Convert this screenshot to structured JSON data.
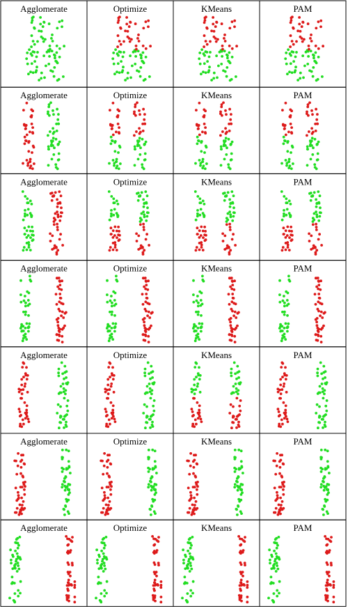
{
  "columns": [
    "Agglomerate",
    "Optimize",
    "KMeans",
    "PAM"
  ],
  "colors": {
    "cluster_red": "#dd1a1a",
    "cluster_green": "#22dd22",
    "border": "#000000"
  },
  "chart_data": {
    "type": "scatter",
    "layout": "grid",
    "rows": 7,
    "cols": 4,
    "column_titles": [
      "Agglomerate",
      "Optimize",
      "KMeans",
      "PAM"
    ],
    "series_colors": [
      "red",
      "green"
    ],
    "rows_data": [
      {
        "clouds": [
          {
            "xcenter": 0.5,
            "xspread": 0.28,
            "n": 80
          }
        ],
        "assignments": [
          {
            "method": "Agglomerate",
            "red_region": "none",
            "notes": "all points one cluster (green)"
          },
          {
            "method": "Optimize",
            "red_region": "top half"
          },
          {
            "method": "KMeans",
            "red_region": "top half"
          },
          {
            "method": "PAM",
            "red_region": "top half"
          }
        ]
      },
      {
        "clouds": [
          {
            "xcenter": 0.31,
            "xspread": 0.08,
            "n": 40
          },
          {
            "xcenter": 0.62,
            "xspread": 0.1,
            "n": 45
          }
        ],
        "assignments": [
          {
            "method": "Agglomerate",
            "red_region": "left cloud"
          },
          {
            "method": "Optimize",
            "red_region": "top half"
          },
          {
            "method": "KMeans",
            "red_region": "top half"
          },
          {
            "method": "PAM",
            "red_region": "top half"
          }
        ]
      },
      {
        "clouds": [
          {
            "xcenter": 0.3,
            "xspread": 0.08,
            "n": 40
          },
          {
            "xcenter": 0.66,
            "xspread": 0.09,
            "n": 45
          }
        ],
        "assignments": [
          {
            "method": "Agglomerate",
            "red_region": "right cloud"
          },
          {
            "method": "Optimize",
            "red_region": "bottom half"
          },
          {
            "method": "KMeans",
            "red_region": "bottom half"
          },
          {
            "method": "PAM",
            "red_region": "bottom half"
          }
        ]
      },
      {
        "clouds": [
          {
            "xcenter": 0.27,
            "xspread": 0.08,
            "n": 40
          },
          {
            "xcenter": 0.72,
            "xspread": 0.08,
            "n": 45
          }
        ],
        "assignments": [
          {
            "method": "Agglomerate",
            "red_region": "right cloud"
          },
          {
            "method": "Optimize",
            "red_region": "right cloud"
          },
          {
            "method": "KMeans",
            "red_region": "right cloud"
          },
          {
            "method": "PAM",
            "red_region": "right cloud"
          }
        ]
      },
      {
        "clouds": [
          {
            "xcenter": 0.24,
            "xspread": 0.08,
            "n": 40
          },
          {
            "xcenter": 0.75,
            "xspread": 0.09,
            "n": 45
          }
        ],
        "assignments": [
          {
            "method": "Agglomerate",
            "red_region": "left cloud"
          },
          {
            "method": "Optimize",
            "red_region": "left cloud"
          },
          {
            "method": "KMeans",
            "red_region": "bottom half"
          },
          {
            "method": "PAM",
            "red_region": "left cloud"
          }
        ]
      },
      {
        "clouds": [
          {
            "xcenter": 0.2,
            "xspread": 0.08,
            "n": 45
          },
          {
            "xcenter": 0.78,
            "xspread": 0.08,
            "n": 45
          }
        ],
        "assignments": [
          {
            "method": "Agglomerate",
            "red_region": "left cloud"
          },
          {
            "method": "Optimize",
            "red_region": "left cloud"
          },
          {
            "method": "KMeans",
            "red_region": "left cloud"
          },
          {
            "method": "PAM",
            "red_region": "left cloud"
          }
        ]
      },
      {
        "clouds": [
          {
            "xcenter": 0.14,
            "xspread": 0.08,
            "n": 45
          },
          {
            "xcenter": 0.84,
            "xspread": 0.08,
            "n": 45
          }
        ],
        "assignments": [
          {
            "method": "Agglomerate",
            "red_region": "right cloud"
          },
          {
            "method": "Optimize",
            "red_region": "right cloud"
          },
          {
            "method": "KMeans",
            "red_region": "right cloud"
          },
          {
            "method": "PAM",
            "red_region": "right cloud"
          }
        ]
      }
    ]
  }
}
